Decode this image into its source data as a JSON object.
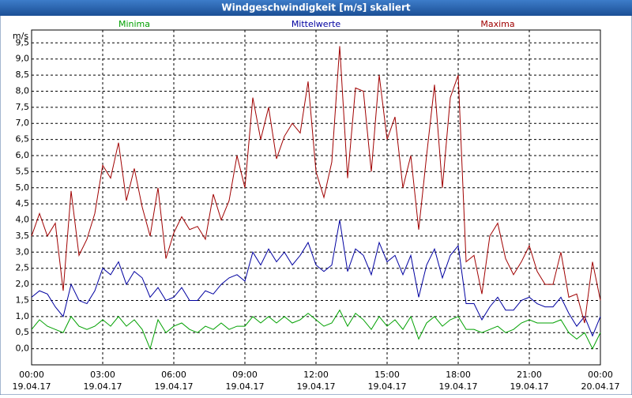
{
  "chart_data": {
    "type": "line",
    "title": "Windgeschwindigkeit [m/s] skaliert",
    "y_unit_label": "m/s",
    "legend": "top",
    "grid": true,
    "x": [
      0,
      20,
      40,
      60,
      80,
      100,
      120,
      140,
      160,
      180,
      200,
      220,
      240,
      260,
      280,
      300,
      320,
      340,
      360,
      380,
      400,
      420,
      440,
      460,
      480,
      500,
      520,
      540,
      560,
      580,
      600,
      620,
      640,
      660,
      680,
      700,
      720,
      740,
      760,
      780,
      800,
      820,
      840,
      860,
      880,
      900,
      920,
      940,
      960,
      980,
      1000,
      1020,
      1040,
      1060,
      1080,
      1100,
      1120,
      1140,
      1160,
      1180,
      1200,
      1220,
      1240,
      1260,
      1280,
      1300,
      1320,
      1340,
      1360,
      1380,
      1400,
      1420,
      1440
    ],
    "xlim": [
      0,
      1440
    ],
    "xticks": [
      {
        "value": 0,
        "label": "00:00"
      },
      {
        "value": 180,
        "label": "03:00"
      },
      {
        "value": 360,
        "label": "06:00"
      },
      {
        "value": 540,
        "label": "09:00"
      },
      {
        "value": 720,
        "label": "12:00"
      },
      {
        "value": 900,
        "label": "15:00"
      },
      {
        "value": 1080,
        "label": "18:00"
      },
      {
        "value": 1260,
        "label": "21:00"
      },
      {
        "value": 1440,
        "label": "00:00"
      }
    ],
    "xtick_dates": [
      "19.04.17",
      "19.04.17",
      "19.04.17",
      "19.04.17",
      "19.04.17",
      "19.04.17",
      "19.04.17",
      "19.04.17",
      "20.04.17"
    ],
    "ylim": [
      -0.5,
      9.9
    ],
    "yticks": [
      {
        "value": 0,
        "label": "0,0"
      },
      {
        "value": 0.5,
        "label": "0,5"
      },
      {
        "value": 1,
        "label": "1,0"
      },
      {
        "value": 1.5,
        "label": "1,5"
      },
      {
        "value": 2,
        "label": "2,0"
      },
      {
        "value": 2.5,
        "label": "2,5"
      },
      {
        "value": 3,
        "label": "3,0"
      },
      {
        "value": 3.5,
        "label": "3,5"
      },
      {
        "value": 4,
        "label": "4,0"
      },
      {
        "value": 4.5,
        "label": "4,5"
      },
      {
        "value": 5,
        "label": "5,0"
      },
      {
        "value": 5.5,
        "label": "5,5"
      },
      {
        "value": 6,
        "label": "6,0"
      },
      {
        "value": 6.5,
        "label": "6,5"
      },
      {
        "value": 7,
        "label": "7,0"
      },
      {
        "value": 7.5,
        "label": "7,5"
      },
      {
        "value": 8,
        "label": "8,0"
      },
      {
        "value": 8.5,
        "label": "8,5"
      },
      {
        "value": 9,
        "label": "9,0"
      },
      {
        "value": 9.5,
        "label": "9,5"
      }
    ],
    "series": [
      {
        "name": "Minima",
        "color": "#00a000",
        "values": [
          0.6,
          0.9,
          0.7,
          0.6,
          0.5,
          1.0,
          0.7,
          0.6,
          0.7,
          0.9,
          0.7,
          1.0,
          0.7,
          0.9,
          0.6,
          0.0,
          0.9,
          0.5,
          0.7,
          0.8,
          0.6,
          0.5,
          0.7,
          0.6,
          0.8,
          0.6,
          0.7,
          0.7,
          1.0,
          0.8,
          1.0,
          0.8,
          1.0,
          0.8,
          0.9,
          1.1,
          0.9,
          0.7,
          0.8,
          1.2,
          0.7,
          1.1,
          0.9,
          0.6,
          1.0,
          0.7,
          0.9,
          0.6,
          1.0,
          0.3,
          0.8,
          1.0,
          0.7,
          0.9,
          1.0,
          0.6,
          0.6,
          0.5,
          0.6,
          0.7,
          0.5,
          0.6,
          0.8,
          0.9,
          0.8,
          0.8,
          0.8,
          0.9,
          0.5,
          0.3,
          0.5,
          0.0,
          0.5
        ]
      },
      {
        "name": "Mittelwerte",
        "color": "#0000a0",
        "values": [
          1.6,
          1.8,
          1.7,
          1.3,
          1.0,
          2.0,
          1.5,
          1.4,
          1.8,
          2.5,
          2.3,
          2.7,
          2.0,
          2.4,
          2.2,
          1.6,
          1.9,
          1.5,
          1.6,
          1.9,
          1.5,
          1.5,
          1.8,
          1.7,
          2.0,
          2.2,
          2.3,
          2.1,
          3.0,
          2.6,
          3.1,
          2.7,
          3.0,
          2.6,
          2.9,
          3.3,
          2.6,
          2.4,
          2.6,
          4.0,
          2.4,
          3.1,
          2.9,
          2.3,
          3.3,
          2.7,
          2.9,
          2.3,
          2.9,
          1.6,
          2.6,
          3.1,
          2.2,
          2.9,
          3.2,
          1.4,
          1.4,
          0.9,
          1.3,
          1.6,
          1.2,
          1.2,
          1.5,
          1.6,
          1.4,
          1.3,
          1.3,
          1.6,
          1.1,
          0.7,
          1.0,
          0.4,
          1.0
        ]
      },
      {
        "name": "Maxima",
        "color": "#a00000",
        "values": [
          3.5,
          4.2,
          3.5,
          3.9,
          1.8,
          4.9,
          2.9,
          3.4,
          4.2,
          5.7,
          5.3,
          6.4,
          4.6,
          5.6,
          4.4,
          3.5,
          5.0,
          2.8,
          3.6,
          4.1,
          3.7,
          3.8,
          3.4,
          4.8,
          4.0,
          4.6,
          6.0,
          5.0,
          7.8,
          6.5,
          7.5,
          5.9,
          6.6,
          7.0,
          6.7,
          8.3,
          5.5,
          4.7,
          5.8,
          9.4,
          5.3,
          8.1,
          8.0,
          5.5,
          8.5,
          6.5,
          7.2,
          5.0,
          6.0,
          3.7,
          6.0,
          8.2,
          5.0,
          7.8,
          8.5,
          2.7,
          2.9,
          1.7,
          3.5,
          3.9,
          2.8,
          2.3,
          2.7,
          3.2,
          2.4,
          2.0,
          2.0,
          3.0,
          1.6,
          1.7,
          0.8,
          2.7,
          1.5
        ]
      }
    ]
  }
}
